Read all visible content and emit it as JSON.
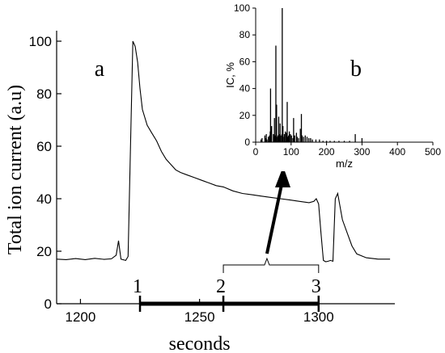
{
  "chart_data": [
    {
      "type": "line",
      "panel_label": "a",
      "xlabel": "seconds",
      "ylabel": "Total ion current (a.u)",
      "xlim": [
        1190,
        1332
      ],
      "ylim": [
        0,
        104
      ],
      "xticks": [
        1200,
        1250,
        1300
      ],
      "yticks": [
        0,
        20,
        40,
        60,
        80,
        100
      ],
      "grid": false,
      "series": [
        {
          "x": [
            1190,
            1194,
            1198,
            1202,
            1206,
            1210,
            1213,
            1215,
            1216,
            1217,
            1219,
            1220,
            1221,
            1222,
            1223,
            1224,
            1225,
            1226,
            1228,
            1230,
            1232,
            1234,
            1236,
            1238,
            1240,
            1242,
            1245,
            1248,
            1251,
            1254,
            1257,
            1260,
            1264,
            1268,
            1272,
            1276,
            1280,
            1284,
            1288,
            1292,
            1296,
            1298,
            1299,
            1300,
            1301,
            1302,
            1303,
            1304,
            1305,
            1306,
            1307,
            1308,
            1309,
            1310,
            1312,
            1314,
            1316,
            1320,
            1325,
            1330
          ],
          "y": [
            17,
            16.8,
            17.2,
            16.8,
            17.3,
            16.9,
            17.1,
            18.5,
            24,
            17,
            16.5,
            18,
            60,
            100,
            98,
            92,
            82,
            74,
            68,
            65,
            62,
            58,
            55,
            53,
            51,
            50,
            49,
            48,
            47,
            46,
            45,
            44.5,
            43,
            42,
            41.5,
            41,
            40.5,
            40,
            39.5,
            39,
            38.5,
            39,
            40,
            38,
            27,
            16.5,
            16,
            16.2,
            16.5,
            16.2,
            40,
            42,
            37,
            32,
            27,
            22,
            19,
            17.5,
            17,
            17
          ]
        }
      ],
      "annotations": [
        {
          "label": "1",
          "x": 1225
        },
        {
          "label": "2",
          "x": 1260
        },
        {
          "label": "3",
          "x": 1300
        }
      ],
      "highlight_range": [
        1260,
        1300
      ]
    },
    {
      "type": "bar",
      "panel_label": "b",
      "xlabel": "m/z",
      "ylabel": "IC, %",
      "xlim": [
        0,
        500
      ],
      "ylim": [
        0,
        100
      ],
      "xticks": [
        0,
        100,
        200,
        300,
        400,
        500
      ],
      "yticks": [
        0,
        20,
        40,
        60,
        80,
        100
      ],
      "grid": false,
      "x": [
        15,
        18,
        26,
        27,
        29,
        30,
        32,
        36,
        39,
        41,
        42,
        43,
        44,
        45,
        50,
        51,
        53,
        55,
        57,
        59,
        60,
        63,
        65,
        67,
        69,
        71,
        74,
        75,
        77,
        78,
        81,
        84,
        87,
        89,
        91,
        93,
        95,
        98,
        101,
        105,
        107,
        110,
        115,
        117,
        121,
        126,
        129,
        131,
        135,
        140,
        145,
        150,
        155,
        160,
        170,
        180,
        190,
        200,
        210,
        222,
        235,
        250,
        265,
        281,
        300
      ],
      "values": [
        2,
        3,
        5,
        3,
        2,
        6,
        2,
        4,
        5,
        8,
        40,
        5,
        10,
        12,
        6,
        4,
        18,
        5,
        72,
        28,
        4,
        5,
        19,
        6,
        14,
        5,
        6,
        100,
        12,
        4,
        6,
        8,
        7,
        30,
        4,
        5,
        8,
        6,
        5,
        3,
        18,
        5,
        7,
        4,
        3,
        10,
        21,
        5,
        4,
        5,
        4,
        3,
        3,
        2,
        2,
        2,
        1,
        1,
        1,
        1,
        1,
        1,
        1,
        6,
        3
      ]
    }
  ]
}
